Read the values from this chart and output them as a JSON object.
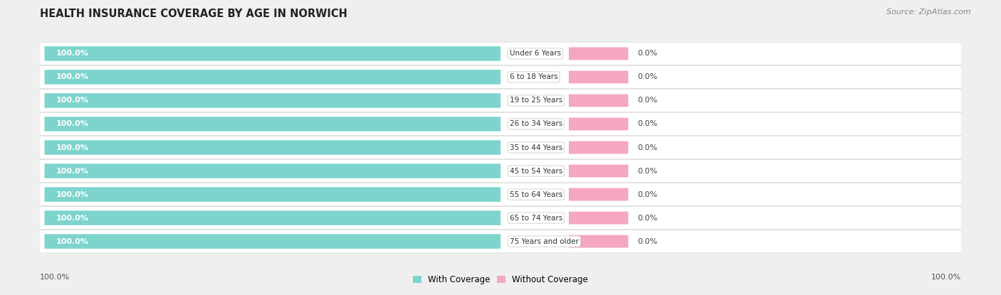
{
  "title": "HEALTH INSURANCE COVERAGE BY AGE IN NORWICH",
  "source": "Source: ZipAtlas.com",
  "categories": [
    "Under 6 Years",
    "6 to 18 Years",
    "19 to 25 Years",
    "26 to 34 Years",
    "35 to 44 Years",
    "45 to 54 Years",
    "55 to 64 Years",
    "65 to 74 Years",
    "75 Years and older"
  ],
  "with_coverage": [
    100.0,
    100.0,
    100.0,
    100.0,
    100.0,
    100.0,
    100.0,
    100.0,
    100.0
  ],
  "without_coverage": [
    0.0,
    0.0,
    0.0,
    0.0,
    0.0,
    0.0,
    0.0,
    0.0,
    0.0
  ],
  "with_coverage_color": "#7dd4cd",
  "without_coverage_color": "#f4a7be",
  "background_color": "#efefef",
  "row_bg_color": "#ffffff",
  "title_fontsize": 10.5,
  "label_fontsize": 8.0,
  "tick_fontsize": 8.0,
  "legend_fontsize": 8.5,
  "source_fontsize": 8.0,
  "legend_labels": [
    "With Coverage",
    "Without Coverage"
  ],
  "x_tick_left": "100.0%",
  "x_tick_right": "100.0%"
}
